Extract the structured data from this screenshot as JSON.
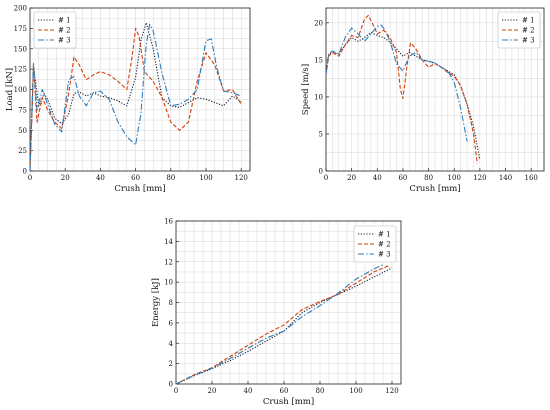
{
  "colors": {
    "series1": "#1a1a2e",
    "series2": "#d2400a",
    "series3": "#2f7bb8",
    "grid": "#cccccc",
    "axis": "#222222"
  },
  "chart_data": [
    {
      "type": "line",
      "xlabel": "Crush [mm]",
      "ylabel": "Load [kN]",
      "xlim": [
        0,
        125
      ],
      "ylim": [
        0,
        200
      ],
      "xticks": [
        0,
        20,
        40,
        60,
        80,
        100,
        120
      ],
      "yticks": [
        0,
        25,
        50,
        75,
        100,
        125,
        150,
        175,
        200
      ],
      "grid": true,
      "legend": "top-left",
      "series": [
        {
          "name": "# 1",
          "style": "dotted",
          "x": [
            0,
            2,
            5,
            8,
            10,
            14,
            18,
            22,
            25,
            28,
            32,
            36,
            40,
            45,
            50,
            55,
            60,
            63,
            66,
            70,
            75,
            80,
            85,
            90,
            95,
            100,
            105,
            110,
            115,
            120
          ],
          "y": [
            0,
            128,
            80,
            95,
            88,
            65,
            58,
            70,
            95,
            97,
            92,
            96,
            92,
            90,
            86,
            80,
            115,
            160,
            182,
            150,
            90,
            80,
            78,
            84,
            90,
            88,
            84,
            80,
            92,
            85
          ]
        },
        {
          "name": "# 2",
          "style": "dashed",
          "x": [
            0,
            2,
            4,
            7,
            10,
            14,
            18,
            22,
            25,
            28,
            32,
            36,
            40,
            45,
            50,
            55,
            58,
            60,
            62,
            65,
            70,
            75,
            80,
            85,
            90,
            95,
            100,
            105,
            110,
            115,
            120
          ],
          "y": [
            0,
            130,
            60,
            90,
            75,
            60,
            52,
            95,
            140,
            130,
            112,
            118,
            122,
            118,
            110,
            100,
            140,
            175,
            165,
            122,
            110,
            90,
            60,
            50,
            60,
            110,
            145,
            130,
            98,
            100,
            82
          ]
        },
        {
          "name": "# 3",
          "style": "dashdot",
          "x": [
            0,
            2,
            4,
            7,
            10,
            14,
            18,
            22,
            25,
            28,
            32,
            36,
            40,
            45,
            50,
            55,
            60,
            63,
            66,
            68,
            70,
            75,
            80,
            85,
            90,
            95,
            100,
            103,
            106,
            110,
            115,
            120
          ],
          "y": [
            0,
            132,
            75,
            100,
            82,
            58,
            48,
            112,
            116,
            92,
            80,
            96,
            98,
            88,
            60,
            42,
            32,
            70,
            155,
            180,
            172,
            120,
            80,
            82,
            88,
            100,
            160,
            162,
            128,
            98,
            96,
            92
          ]
        }
      ]
    },
    {
      "type": "line",
      "xlabel": "Crush [mm]",
      "ylabel": "Speed [m/s]",
      "xlim": [
        0,
        170
      ],
      "ylim": [
        0,
        22
      ],
      "xticks": [
        0,
        20,
        40,
        60,
        80,
        100,
        120,
        140,
        160
      ],
      "yticks": [
        0,
        5,
        10,
        15,
        20
      ],
      "grid": true,
      "legend": "top-right",
      "series": [
        {
          "name": "# 1",
          "style": "dotted",
          "x": [
            0,
            2,
            5,
            10,
            15,
            20,
            25,
            30,
            35,
            40,
            45,
            50,
            55,
            60,
            65,
            70,
            75,
            80,
            85,
            90,
            95,
            100,
            105,
            110,
            115,
            120
          ],
          "y": [
            13,
            15.8,
            16,
            15.8,
            17,
            18,
            17.5,
            18,
            18.7,
            18.3,
            18,
            17.4,
            16.5,
            15.5,
            16,
            15.5,
            15,
            14.8,
            14.5,
            14,
            13.5,
            13,
            11.5,
            9,
            6,
            1.5
          ]
        },
        {
          "name": "# 2",
          "style": "dashed",
          "x": [
            0,
            2,
            5,
            10,
            15,
            20,
            25,
            30,
            33,
            36,
            40,
            45,
            50,
            55,
            58,
            60,
            63,
            66,
            70,
            75,
            80,
            85,
            90,
            95,
            100,
            105,
            110,
            115,
            118
          ],
          "y": [
            13,
            15.5,
            16,
            15.5,
            17,
            18.3,
            18,
            20.5,
            21,
            20,
            18.5,
            19,
            18,
            16,
            11,
            9.8,
            14,
            17.3,
            16.5,
            15,
            14,
            14.5,
            14,
            13.3,
            12.8,
            11.5,
            9,
            5,
            1
          ]
        },
        {
          "name": "# 3",
          "style": "dashdot",
          "x": [
            0,
            2,
            5,
            10,
            15,
            20,
            25,
            30,
            35,
            40,
            43,
            46,
            50,
            55,
            60,
            65,
            70,
            75,
            80,
            85,
            90,
            95,
            100,
            105,
            110
          ],
          "y": [
            13,
            15.8,
            16.2,
            15.8,
            18,
            19.3,
            18.5,
            17.5,
            18.5,
            19.5,
            19.7,
            19,
            17.5,
            14.5,
            13.5,
            15.5,
            16,
            15,
            14.8,
            14.6,
            14,
            13.5,
            12,
            8.5,
            4
          ]
        }
      ]
    },
    {
      "type": "line",
      "xlabel": "Crush [mm]",
      "ylabel": "Energy [kJ]",
      "xlim": [
        0,
        125
      ],
      "ylim": [
        0,
        16
      ],
      "xticks": [
        0,
        20,
        40,
        60,
        80,
        100,
        120
      ],
      "yticks": [
        0,
        2,
        4,
        6,
        8,
        10,
        12,
        14,
        16
      ],
      "grid": true,
      "legend": "top-right",
      "series": [
        {
          "name": "# 1",
          "style": "dotted",
          "x": [
            0,
            10,
            20,
            30,
            40,
            50,
            60,
            70,
            80,
            90,
            100,
            110,
            120
          ],
          "y": [
            0,
            0.8,
            1.5,
            2.3,
            3.2,
            4.2,
            5.2,
            7.0,
            8.0,
            8.8,
            9.6,
            10.5,
            11.4
          ]
        },
        {
          "name": "# 2",
          "style": "dashed",
          "x": [
            0,
            10,
            20,
            30,
            40,
            50,
            60,
            70,
            80,
            90,
            100,
            110,
            118
          ],
          "y": [
            0,
            0.9,
            1.6,
            2.7,
            3.8,
            4.9,
            5.8,
            7.3,
            8.1,
            8.8,
            9.9,
            11.0,
            11.6
          ]
        },
        {
          "name": "# 3",
          "style": "dashdot",
          "x": [
            0,
            10,
            20,
            30,
            40,
            50,
            60,
            70,
            80,
            90,
            100,
            110,
            115
          ],
          "y": [
            0,
            0.85,
            1.55,
            2.5,
            3.5,
            4.5,
            5.2,
            6.6,
            7.7,
            8.9,
            10.3,
            11.3,
            11.7
          ]
        }
      ]
    }
  ]
}
